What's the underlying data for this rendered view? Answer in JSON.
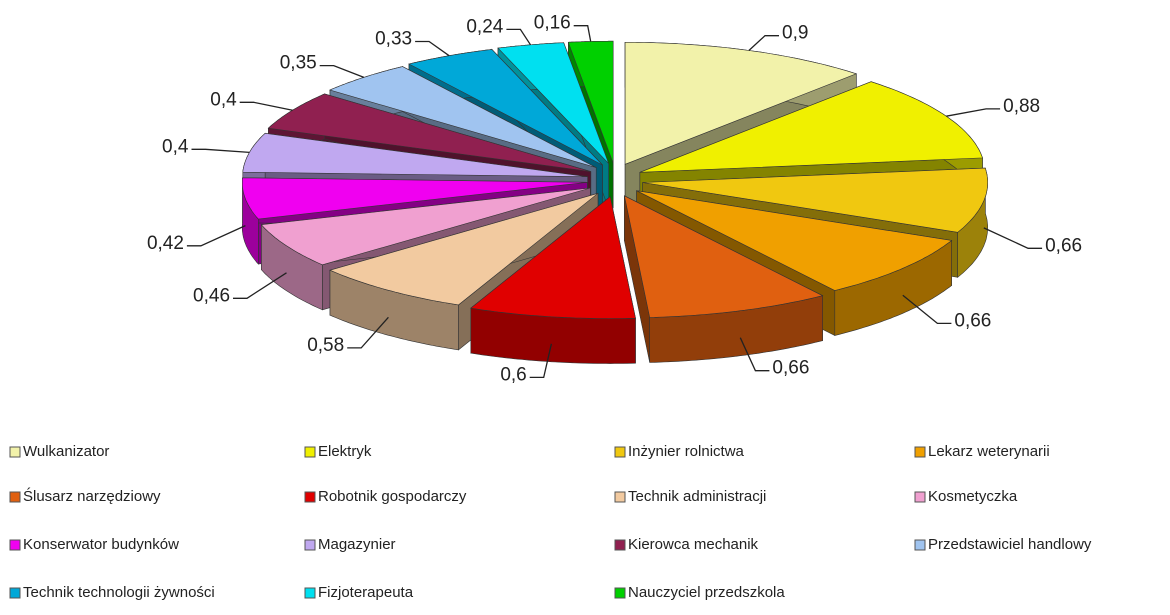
{
  "chart_data": {
    "type": "pie",
    "categories": [
      "Wulkanizator",
      "Elektryk",
      "Inżynier rolnictwa",
      "Lekarz weterynarii",
      "Ślusarz narzędziowy",
      "Robotnik gospodarczy",
      "Technik administracji",
      "Kosmetyczka",
      "Konserwator budynków",
      "Magazynier",
      "Kierowca mechanik",
      "Przedstawiciel handlowy",
      "Technik technologii żywności",
      "Fizjoterapeuta",
      "Nauczyciel przedszkola"
    ],
    "values": [
      0.9,
      0.88,
      0.66,
      0.66,
      0.66,
      0.6,
      0.58,
      0.46,
      0.42,
      0.4,
      0.4,
      0.35,
      0.33,
      0.24,
      0.16
    ],
    "value_labels": [
      "0,9",
      "0,88",
      "0,66",
      "0,66",
      "0,66",
      "0,6",
      "0,58",
      "0,46",
      "0,42",
      "0,4",
      "0,4",
      "0,35",
      "0,33",
      "0,24",
      "0,16"
    ],
    "colors": [
      "#f2f2aa",
      "#f0f000",
      "#f0c810",
      "#f0a000",
      "#e06010",
      "#e00000",
      "#f2caa0",
      "#f0a0d0",
      "#f000f0",
      "#c0a8f0",
      "#902050",
      "#a0c4f0",
      "#00a8d8",
      "#00e0f0",
      "#00d000"
    ],
    "legend": "bottom"
  }
}
